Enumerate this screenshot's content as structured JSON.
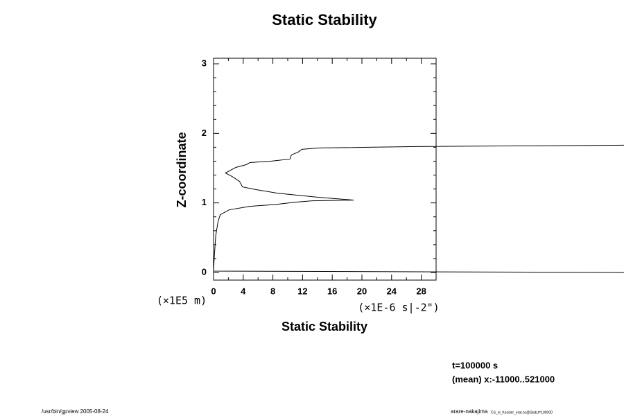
{
  "chart_data": {
    "type": "line",
    "title": "Static Stability",
    "x_label": "Static Stability",
    "y_label": "Z-coordinate",
    "x_unit": "(×1E-6 s|-2\")",
    "y_unit": "(×1E5 m)",
    "annotations": [
      "t=100000 s",
      "(mean) x:-11000..521000"
    ],
    "footer_left": "/usr/bin/gpview 2005-08-24",
    "footer_right": "arare-nakajima",
    "footer_right_small": "CS_ol_Kessler_erat.nc@Stab,t=100000",
    "color": "#000000",
    "xlim": [
      0,
      30
    ],
    "ylim": [
      -0.11,
      3.08
    ],
    "xticks": [
      0,
      4,
      8,
      12,
      16,
      20,
      24,
      28
    ],
    "yticks": [
      0,
      1,
      2,
      3
    ],
    "xminorticks": [
      2,
      6,
      10,
      14,
      18,
      22,
      26,
      30
    ],
    "yminorticks": [
      0.2,
      0.4,
      0.6,
      0.8,
      1.2,
      1.4,
      1.6,
      1.8,
      2.2,
      2.4,
      2.6,
      2.8
    ],
    "x": [
      55.4,
      0,
      0.1,
      0.3,
      0.6,
      0.9,
      2.1,
      4.9,
      8.6,
      11.0,
      13.3,
      18.9,
      14.2,
      8.6,
      5.8,
      3.9,
      3.5,
      2.5,
      1.6,
      3.0,
      4.4,
      4.9,
      7.7,
      10.3,
      10.5,
      11.4,
      11.9,
      14.2,
      27.3,
      55.4
    ],
    "y": [
      0.0,
      0.02,
      0.23,
      0.53,
      0.73,
      0.83,
      0.9,
      0.95,
      0.98,
      1.01,
      1.03,
      1.04,
      1.08,
      1.14,
      1.19,
      1.23,
      1.31,
      1.38,
      1.43,
      1.51,
      1.55,
      1.58,
      1.6,
      1.63,
      1.69,
      1.73,
      1.77,
      1.79,
      1.81,
      1.83
    ]
  }
}
